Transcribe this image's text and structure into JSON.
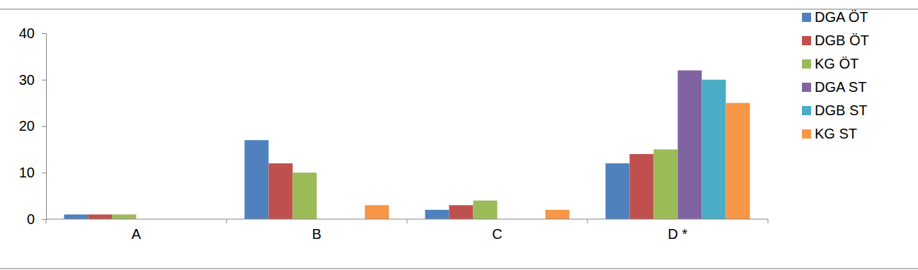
{
  "chart_data": {
    "type": "bar",
    "categories": [
      "A",
      "B",
      "C",
      "D *"
    ],
    "series": [
      {
        "name": "DGA ÖT",
        "color": "#4f81bd",
        "values": [
          1,
          17,
          2,
          12
        ]
      },
      {
        "name": "DGB ÖT",
        "color": "#c0504d",
        "values": [
          1,
          12,
          3,
          14
        ]
      },
      {
        "name": "KG ÖT",
        "color": "#9bbb59",
        "values": [
          1,
          10,
          4,
          15
        ]
      },
      {
        "name": "DGA ST",
        "color": "#8064a2",
        "values": [
          0,
          0,
          0,
          32
        ]
      },
      {
        "name": "DGB ST",
        "color": "#4bacc6",
        "values": [
          0,
          0,
          0,
          30
        ]
      },
      {
        "name": "KG ST",
        "color": "#f79646",
        "values": [
          0,
          3,
          2,
          25
        ]
      }
    ],
    "ylim": [
      0,
      40
    ],
    "yticks": [
      0,
      10,
      20,
      30,
      40
    ],
    "grid": false,
    "legend": "right"
  }
}
